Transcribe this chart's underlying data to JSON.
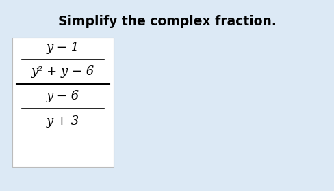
{
  "title": "Simplify the complex fraction.",
  "title_fontsize": 13.5,
  "title_fontweight": "bold",
  "title_color": "#000000",
  "bg_color": "#dce9f5",
  "box_color": "#ffffff",
  "text_color": "#000000",
  "num_top": "y − 1",
  "den_top": "y² + y − 6",
  "num_bot": "y − 6",
  "den_bot": "y + 3",
  "math_fontsize": 13
}
